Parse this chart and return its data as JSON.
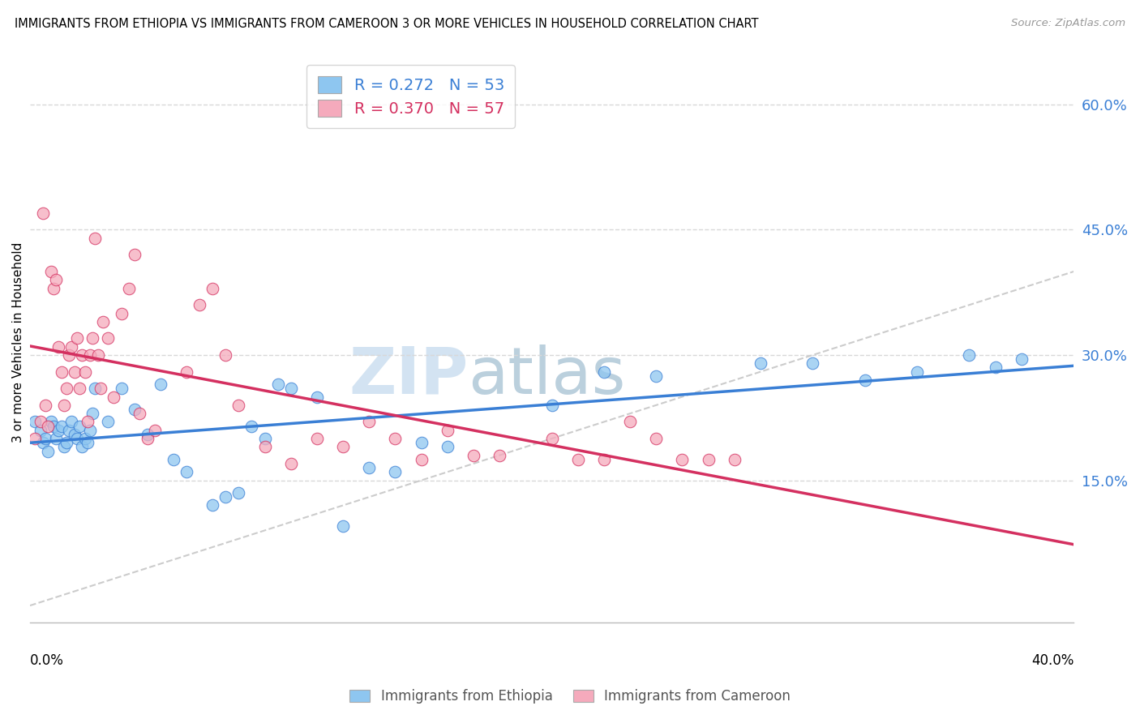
{
  "title": "IMMIGRANTS FROM ETHIOPIA VS IMMIGRANTS FROM CAMEROON 3 OR MORE VEHICLES IN HOUSEHOLD CORRELATION CHART",
  "source": "Source: ZipAtlas.com",
  "ylabel": "3 or more Vehicles in Household",
  "xrange": [
    0.0,
    0.4
  ],
  "yrange": [
    -0.02,
    0.65
  ],
  "watermark_zip": "ZIP",
  "watermark_atlas": "atlas",
  "R_ethiopia": 0.272,
  "N_ethiopia": 53,
  "R_cameroon": 0.37,
  "N_cameroon": 57,
  "color_ethiopia": "#8ec6f0",
  "color_cameroon": "#f5aabc",
  "color_ethiopia_line": "#3a7fd5",
  "color_cameroon_line": "#d43060",
  "color_diagonal": "#cccccc",
  "ethiopia_x": [
    0.002,
    0.004,
    0.005,
    0.006,
    0.007,
    0.008,
    0.009,
    0.01,
    0.011,
    0.012,
    0.013,
    0.014,
    0.015,
    0.016,
    0.017,
    0.018,
    0.019,
    0.02,
    0.021,
    0.022,
    0.023,
    0.024,
    0.025,
    0.03,
    0.035,
    0.04,
    0.045,
    0.05,
    0.055,
    0.06,
    0.07,
    0.075,
    0.08,
    0.085,
    0.09,
    0.095,
    0.1,
    0.11,
    0.12,
    0.13,
    0.14,
    0.15,
    0.16,
    0.2,
    0.22,
    0.24,
    0.28,
    0.3,
    0.32,
    0.34,
    0.36,
    0.37,
    0.38
  ],
  "ethiopia_y": [
    0.22,
    0.21,
    0.195,
    0.2,
    0.185,
    0.22,
    0.215,
    0.2,
    0.21,
    0.215,
    0.19,
    0.195,
    0.21,
    0.22,
    0.205,
    0.2,
    0.215,
    0.19,
    0.2,
    0.195,
    0.21,
    0.23,
    0.26,
    0.22,
    0.26,
    0.235,
    0.205,
    0.265,
    0.175,
    0.16,
    0.12,
    0.13,
    0.135,
    0.215,
    0.2,
    0.265,
    0.26,
    0.25,
    0.095,
    0.165,
    0.16,
    0.195,
    0.19,
    0.24,
    0.28,
    0.275,
    0.29,
    0.29,
    0.27,
    0.28,
    0.3,
    0.285,
    0.295
  ],
  "cameroon_x": [
    0.002,
    0.004,
    0.005,
    0.006,
    0.007,
    0.008,
    0.009,
    0.01,
    0.011,
    0.012,
    0.013,
    0.014,
    0.015,
    0.016,
    0.017,
    0.018,
    0.019,
    0.02,
    0.021,
    0.022,
    0.023,
    0.024,
    0.025,
    0.026,
    0.027,
    0.028,
    0.03,
    0.032,
    0.035,
    0.038,
    0.04,
    0.042,
    0.045,
    0.048,
    0.06,
    0.065,
    0.07,
    0.075,
    0.08,
    0.09,
    0.1,
    0.11,
    0.12,
    0.13,
    0.14,
    0.15,
    0.16,
    0.17,
    0.18,
    0.2,
    0.21,
    0.22,
    0.23,
    0.24,
    0.25,
    0.26,
    0.27
  ],
  "cameroon_y": [
    0.2,
    0.22,
    0.47,
    0.24,
    0.215,
    0.4,
    0.38,
    0.39,
    0.31,
    0.28,
    0.24,
    0.26,
    0.3,
    0.31,
    0.28,
    0.32,
    0.26,
    0.3,
    0.28,
    0.22,
    0.3,
    0.32,
    0.44,
    0.3,
    0.26,
    0.34,
    0.32,
    0.25,
    0.35,
    0.38,
    0.42,
    0.23,
    0.2,
    0.21,
    0.28,
    0.36,
    0.38,
    0.3,
    0.24,
    0.19,
    0.17,
    0.2,
    0.19,
    0.22,
    0.2,
    0.175,
    0.21,
    0.18,
    0.18,
    0.2,
    0.175,
    0.175,
    0.22,
    0.2,
    0.175,
    0.175,
    0.175
  ]
}
